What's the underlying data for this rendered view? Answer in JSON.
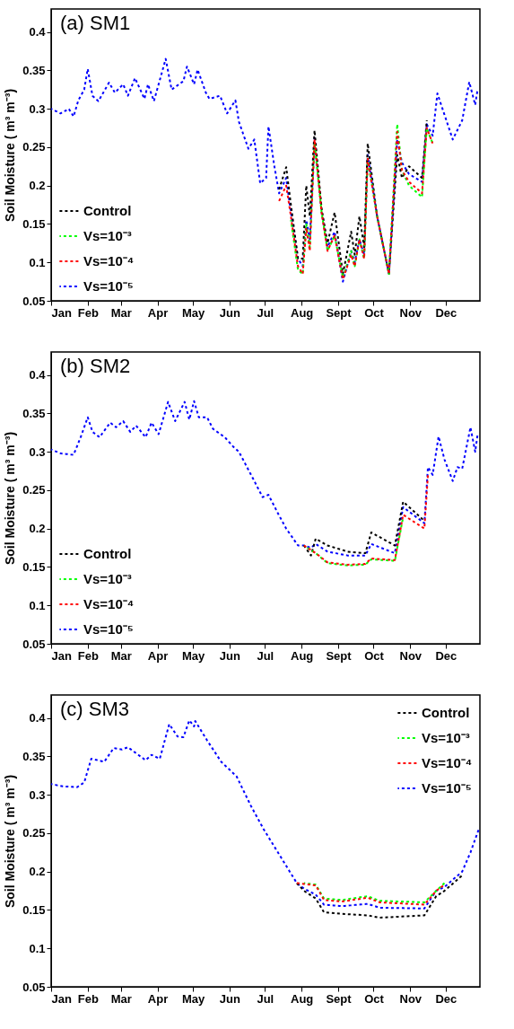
{
  "chart_data": [
    {
      "type": "line",
      "title": "(a) SM1",
      "ylabel": "Soil Moisture ( m³ m⁻³)",
      "legend": "bottom left",
      "line_style": "dashed",
      "xlim": [
        "--01-01",
        "--12-30"
      ],
      "ylim": [
        0.05,
        0.43
      ],
      "xticks": [
        {
          "value": "--01-01",
          "label": "Jan"
        },
        {
          "value": "--02-01",
          "label": "Feb"
        },
        {
          "value": "--03-01",
          "label": "Mar"
        },
        {
          "value": "--04-01",
          "label": "Apr"
        },
        {
          "value": "--05-01",
          "label": "May"
        },
        {
          "value": "--06-01",
          "label": "Jun"
        },
        {
          "value": "--07-01",
          "label": "Jul"
        },
        {
          "value": "--08-01",
          "label": "Aug"
        },
        {
          "value": "--09-01",
          "label": "Sept"
        },
        {
          "value": "--10-01",
          "label": "Oct"
        },
        {
          "value": "--11-01",
          "label": "Nov"
        },
        {
          "value": "--12-01",
          "label": "Dec"
        }
      ],
      "yticks": [
        0.05,
        0.1,
        0.15,
        0.2,
        0.25,
        0.3,
        0.35,
        0.4
      ],
      "x": [
        "--01-01",
        "--01-09",
        "--01-16",
        "--01-20",
        "--01-24",
        "--01-29",
        "--02-01",
        "--02-05",
        "--02-10",
        "--02-19",
        "--02-24",
        "--03-03",
        "--03-07",
        "--03-13",
        "--03-21",
        "--03-24",
        "--03-29",
        "--04-08",
        "--04-13",
        "--04-23",
        "--04-26",
        "--05-02",
        "--05-05",
        "--05-12",
        "--05-15",
        "--05-24",
        "--05-30",
        "--06-06",
        "--06-09",
        "--06-17",
        "--06-22",
        "--06-27",
        "--07-02",
        "--07-04",
        "--07-09",
        "--07-13",
        "--07-19",
        "--07-23",
        "--07-29",
        "--08-02",
        "--08-05",
        "--08-08",
        "--08-12",
        "--08-18",
        "--08-23",
        "--08-29",
        "--09-05",
        "--09-12",
        "--09-15",
        "--09-19",
        "--09-23",
        "--09-26",
        "--10-04",
        "--10-14",
        "--10-21",
        "--10-25",
        "--10-31",
        "--11-11",
        "--11-15",
        "--11-20",
        "--11-24",
        "--12-07",
        "--12-15",
        "--12-21",
        "--12-26",
        "--12-28"
      ],
      "series": [
        {
          "name": "Control",
          "color": "#000000",
          "values": [
            null,
            null,
            null,
            null,
            null,
            null,
            null,
            null,
            null,
            null,
            null,
            null,
            null,
            null,
            null,
            null,
            null,
            null,
            null,
            null,
            null,
            null,
            null,
            null,
            null,
            null,
            null,
            null,
            null,
            null,
            null,
            null,
            null,
            null,
            null,
            0.195,
            0.224,
            0.175,
            0.105,
            0.105,
            0.2,
            0.16,
            0.272,
            0.17,
            0.125,
            0.165,
            0.085,
            0.14,
            0.11,
            0.16,
            0.12,
            0.255,
            0.16,
            0.085,
            0.24,
            0.21,
            0.225,
            0.21,
            0.285,
            null,
            null,
            null,
            null,
            null,
            null,
            null
          ]
        },
        {
          "name": "Vs=10⁻³",
          "color": "#00ff00",
          "values": [
            null,
            null,
            null,
            null,
            null,
            null,
            null,
            null,
            null,
            null,
            null,
            null,
            null,
            null,
            null,
            null,
            null,
            null,
            null,
            null,
            null,
            null,
            null,
            null,
            null,
            null,
            null,
            null,
            null,
            null,
            null,
            null,
            null,
            null,
            null,
            null,
            null,
            0.155,
            0.09,
            0.085,
            0.15,
            0.12,
            0.255,
            0.165,
            0.115,
            0.135,
            0.08,
            0.115,
            0.095,
            0.13,
            0.105,
            0.235,
            0.16,
            0.085,
            0.28,
            0.22,
            0.2,
            0.185,
            0.275,
            0.255,
            null,
            null,
            null,
            null,
            null,
            null
          ]
        },
        {
          "name": "Vs=10⁻⁴",
          "color": "#ff0000",
          "values": [
            null,
            null,
            null,
            null,
            null,
            null,
            null,
            null,
            null,
            null,
            null,
            null,
            null,
            null,
            null,
            null,
            null,
            null,
            null,
            null,
            null,
            null,
            null,
            null,
            null,
            null,
            null,
            null,
            null,
            null,
            null,
            null,
            null,
            null,
            null,
            0.18,
            0.2,
            0.16,
            0.095,
            0.085,
            0.145,
            0.115,
            0.26,
            0.165,
            0.115,
            0.135,
            0.078,
            0.11,
            0.095,
            0.13,
            0.105,
            0.235,
            0.16,
            0.085,
            0.27,
            0.22,
            0.205,
            0.19,
            0.275,
            0.255,
            null,
            null,
            null,
            null,
            null,
            null
          ]
        },
        {
          "name": "Vs=10⁻⁵",
          "color": "#0000ff",
          "values": [
            0.3,
            0.294,
            0.3,
            0.29,
            0.311,
            0.325,
            0.352,
            0.317,
            0.31,
            0.334,
            0.321,
            0.332,
            0.317,
            0.34,
            0.313,
            0.332,
            0.31,
            0.365,
            0.325,
            0.336,
            0.355,
            0.332,
            0.351,
            0.321,
            0.313,
            0.317,
            0.294,
            0.311,
            0.283,
            0.248,
            0.26,
            0.203,
            0.21,
            0.277,
            0.225,
            0.19,
            0.21,
            0.165,
            0.105,
            0.095,
            0.155,
            0.13,
            0.262,
            0.165,
            0.12,
            0.14,
            0.075,
            0.115,
            0.1,
            0.13,
            0.11,
            0.24,
            0.16,
            0.085,
            0.26,
            0.23,
            0.215,
            0.205,
            0.28,
            0.265,
            0.32,
            0.26,
            0.285,
            0.335,
            0.305,
            0.325
          ]
        }
      ]
    },
    {
      "type": "line",
      "title": "(b) SM2",
      "ylabel": "Soil Moisture ( m³ m⁻³)",
      "legend": "bottom left",
      "line_style": "dashed",
      "xlim": [
        "--01-01",
        "--12-30"
      ],
      "ylim": [
        0.05,
        0.43
      ],
      "xticks": [
        {
          "value": "--01-01",
          "label": "Jan"
        },
        {
          "value": "--02-01",
          "label": "Feb"
        },
        {
          "value": "--03-01",
          "label": "Mar"
        },
        {
          "value": "--04-01",
          "label": "Apr"
        },
        {
          "value": "--05-01",
          "label": "May"
        },
        {
          "value": "--06-01",
          "label": "Jun"
        },
        {
          "value": "--07-01",
          "label": "Jul"
        },
        {
          "value": "--08-01",
          "label": "Aug"
        },
        {
          "value": "--09-01",
          "label": "Sept"
        },
        {
          "value": "--10-01",
          "label": "Oct"
        },
        {
          "value": "--11-01",
          "label": "Nov"
        },
        {
          "value": "--12-01",
          "label": "Dec"
        }
      ],
      "yticks": [
        0.05,
        0.1,
        0.15,
        0.2,
        0.25,
        0.3,
        0.35,
        0.4
      ],
      "x": [
        "--01-01",
        "--01-09",
        "--01-20",
        "--01-26",
        "--02-01",
        "--02-05",
        "--02-11",
        "--02-20",
        "--02-25",
        "--03-03",
        "--03-09",
        "--03-14",
        "--03-22",
        "--03-27",
        "--04-02",
        "--04-10",
        "--04-16",
        "--04-24",
        "--04-28",
        "--05-02",
        "--05-06",
        "--05-13",
        "--05-18",
        "--05-28",
        "--06-04",
        "--06-09",
        "--06-22",
        "--06-29",
        "--07-04",
        "--07-12",
        "--07-19",
        "--07-29",
        "--08-03",
        "--08-09",
        "--08-13",
        "--08-23",
        "--09-09",
        "--09-24",
        "--09-29",
        "--10-19",
        "--10-26",
        "--11-13",
        "--11-16",
        "--11-20",
        "--11-25",
        "--11-30",
        "--12-07",
        "--12-11",
        "--12-15",
        "--12-22",
        "--12-26",
        "--12-28"
      ],
      "series": [
        {
          "name": "Control",
          "color": "#000000",
          "values": [
            null,
            null,
            null,
            null,
            null,
            null,
            null,
            null,
            null,
            null,
            null,
            null,
            null,
            null,
            null,
            null,
            null,
            null,
            null,
            null,
            null,
            null,
            null,
            null,
            null,
            null,
            null,
            null,
            null,
            null,
            null,
            null,
            0.178,
            0.165,
            0.187,
            0.178,
            0.17,
            0.168,
            0.195,
            0.178,
            0.235,
            0.21,
            null,
            null,
            null,
            null,
            null,
            null,
            null,
            null,
            null,
            null
          ]
        },
        {
          "name": "Vs=10⁻³",
          "color": "#00ff00",
          "values": [
            null,
            null,
            null,
            null,
            null,
            null,
            null,
            null,
            null,
            null,
            null,
            null,
            null,
            null,
            null,
            null,
            null,
            null,
            null,
            null,
            null,
            null,
            null,
            null,
            null,
            null,
            null,
            null,
            null,
            null,
            null,
            null,
            0.178,
            0.172,
            0.168,
            0.155,
            0.152,
            0.153,
            0.16,
            0.158,
            0.215,
            null,
            null,
            null,
            null,
            null,
            null,
            null,
            null,
            null,
            null,
            null
          ]
        },
        {
          "name": "Vs=10⁻⁴",
          "color": "#ff0000",
          "values": [
            null,
            null,
            null,
            null,
            null,
            null,
            null,
            null,
            null,
            null,
            null,
            null,
            null,
            null,
            null,
            null,
            null,
            null,
            null,
            null,
            null,
            null,
            null,
            null,
            null,
            null,
            null,
            null,
            null,
            null,
            null,
            null,
            0.178,
            0.172,
            0.168,
            0.156,
            0.153,
            0.154,
            0.161,
            0.159,
            0.218,
            0.2,
            0.27,
            null,
            null,
            null,
            null,
            null,
            null,
            null,
            null,
            null
          ]
        },
        {
          "name": "Vs=10⁻⁵",
          "color": "#0000ff",
          "values": [
            0.303,
            0.298,
            0.296,
            0.319,
            0.345,
            0.326,
            0.319,
            0.338,
            0.332,
            0.34,
            0.326,
            0.334,
            0.319,
            0.338,
            0.323,
            0.365,
            0.34,
            0.365,
            0.342,
            0.366,
            0.345,
            0.345,
            0.33,
            0.319,
            0.307,
            0.3,
            0.262,
            0.241,
            0.244,
            0.22,
            0.2,
            0.178,
            0.178,
            0.175,
            0.18,
            0.17,
            0.165,
            0.165,
            0.18,
            0.168,
            0.228,
            0.207,
            0.28,
            0.27,
            0.32,
            0.29,
            0.262,
            0.28,
            0.278,
            0.332,
            0.3,
            0.322
          ]
        }
      ]
    },
    {
      "type": "line",
      "title": "(c) SM3",
      "ylabel": "Soil Moisture ( m³ m⁻³)",
      "legend": "top right",
      "line_style": "dashed",
      "xlim": [
        "--01-01",
        "--12-30"
      ],
      "ylim": [
        0.05,
        0.43
      ],
      "xticks": [
        {
          "value": "--01-01",
          "label": "Jan"
        },
        {
          "value": "--02-01",
          "label": "Feb"
        },
        {
          "value": "--03-01",
          "label": "Mar"
        },
        {
          "value": "--04-01",
          "label": "Apr"
        },
        {
          "value": "--05-01",
          "label": "May"
        },
        {
          "value": "--06-01",
          "label": "Jun"
        },
        {
          "value": "--07-01",
          "label": "Jul"
        },
        {
          "value": "--08-01",
          "label": "Aug"
        },
        {
          "value": "--09-01",
          "label": "Sept"
        },
        {
          "value": "--10-01",
          "label": "Oct"
        },
        {
          "value": "--11-01",
          "label": "Nov"
        },
        {
          "value": "--12-01",
          "label": "Dec"
        }
      ],
      "yticks": [
        0.05,
        0.1,
        0.15,
        0.2,
        0.25,
        0.3,
        0.35,
        0.4
      ],
      "x": [
        "--01-01",
        "--01-11",
        "--01-23",
        "--01-29",
        "--02-04",
        "--02-15",
        "--02-23",
        "--03-02",
        "--03-07",
        "--03-22",
        "--03-27",
        "--04-03",
        "--04-11",
        "--04-18",
        "--04-23",
        "--04-28",
        "--05-02",
        "--05-03",
        "--05-13",
        "--05-25",
        "--06-07",
        "--06-19",
        "--06-30",
        "--07-12",
        "--07-28",
        "--08-03",
        "--08-13",
        "--08-20",
        "--09-04",
        "--09-26",
        "--10-06",
        "--11-13",
        "--11-23",
        "--11-30",
        "--12-15",
        "--12-22",
        "--12-29"
      ],
      "series": [
        {
          "name": "Control",
          "color": "#000000",
          "values": [
            null,
            null,
            null,
            null,
            null,
            null,
            null,
            null,
            null,
            null,
            null,
            null,
            null,
            null,
            null,
            null,
            null,
            null,
            null,
            null,
            null,
            null,
            null,
            null,
            0.185,
            0.175,
            0.165,
            0.147,
            0.145,
            0.143,
            0.14,
            0.143,
            0.168,
            0.175,
            0.195,
            null,
            null
          ]
        },
        {
          "name": "Vs=10⁻³",
          "color": "#00ff00",
          "values": [
            null,
            null,
            null,
            null,
            null,
            null,
            null,
            null,
            null,
            null,
            null,
            null,
            null,
            null,
            null,
            null,
            null,
            null,
            null,
            null,
            null,
            null,
            null,
            null,
            null,
            0.185,
            0.183,
            0.165,
            0.163,
            0.168,
            0.162,
            0.16,
            0.175,
            0.185,
            null,
            null,
            null
          ]
        },
        {
          "name": "Vs=10⁻⁴",
          "color": "#ff0000",
          "values": [
            null,
            null,
            null,
            null,
            null,
            null,
            null,
            null,
            null,
            null,
            null,
            null,
            null,
            null,
            null,
            null,
            null,
            null,
            null,
            null,
            null,
            null,
            null,
            null,
            0.185,
            0.184,
            0.182,
            0.163,
            0.161,
            0.166,
            0.16,
            0.157,
            0.175,
            0.183,
            null,
            null,
            null
          ]
        },
        {
          "name": "Vs=10⁻⁵",
          "color": "#0000ff",
          "values": [
            0.314,
            0.311,
            0.31,
            0.316,
            0.347,
            0.343,
            0.361,
            0.359,
            0.362,
            0.345,
            0.352,
            0.347,
            0.392,
            0.376,
            0.375,
            0.397,
            0.389,
            0.396,
            0.371,
            0.343,
            0.324,
            0.286,
            0.255,
            0.225,
            0.185,
            0.178,
            0.17,
            0.157,
            0.155,
            0.158,
            0.153,
            0.152,
            0.175,
            0.18,
            0.2,
            0.225,
            0.255
          ]
        }
      ]
    }
  ]
}
